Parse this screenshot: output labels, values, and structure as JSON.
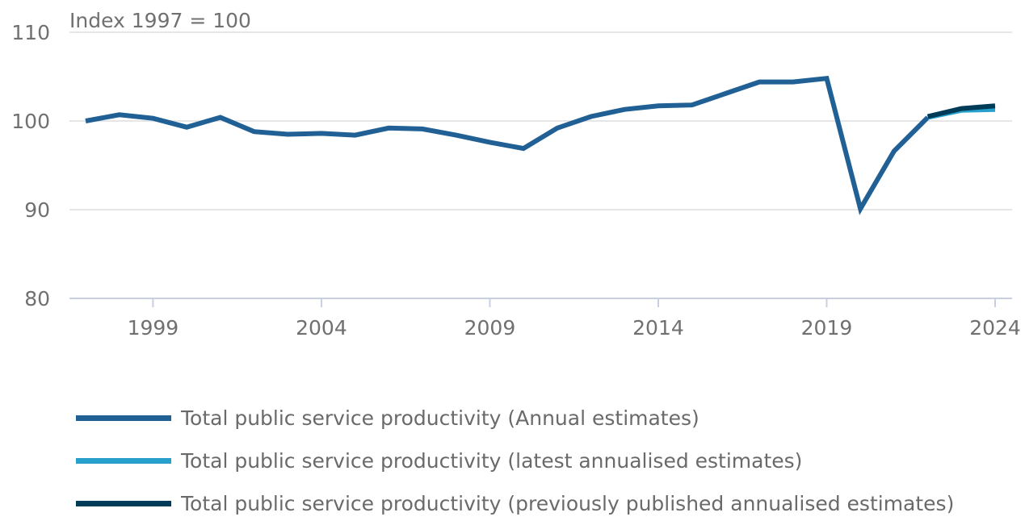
{
  "chart_data": {
    "type": "line",
    "ylabel": "Index 1997 = 100",
    "ylim": [
      80,
      110
    ],
    "xlim": [
      1997,
      2024
    ],
    "yticks": [
      80,
      90,
      100,
      110
    ],
    "xticks": [
      1999,
      2004,
      2009,
      2014,
      2019,
      2024
    ],
    "grid": true,
    "legend_position": "bottom",
    "series": [
      {
        "name": "Total public service productivity (Annual estimates)",
        "color": "#206095",
        "x": [
          1997,
          1998,
          1999,
          2000,
          2001,
          2002,
          2003,
          2004,
          2005,
          2006,
          2007,
          2008,
          2009,
          2010,
          2011,
          2012,
          2013,
          2014,
          2015,
          2016,
          2017,
          2018,
          2019,
          2020,
          2021,
          2022
        ],
        "y": [
          100.0,
          100.7,
          100.3,
          99.3,
          100.4,
          98.8,
          98.5,
          98.6,
          98.4,
          99.2,
          99.1,
          98.4,
          97.6,
          96.9,
          99.2,
          100.5,
          101.3,
          101.7,
          101.8,
          103.1,
          104.4,
          104.4,
          104.8,
          90.1,
          96.6,
          100.4
        ]
      },
      {
        "name": "Total public service productivity (latest annualised estimates)",
        "color": "#27a0cc",
        "x": [
          2022,
          2023,
          2024
        ],
        "y": [
          100.4,
          101.2,
          101.3
        ]
      },
      {
        "name": "Total public service productivity (previously published annualised estimates)",
        "color": "#003c57",
        "x": [
          2022,
          2023,
          2024
        ],
        "y": [
          100.5,
          101.4,
          101.7
        ]
      }
    ]
  }
}
